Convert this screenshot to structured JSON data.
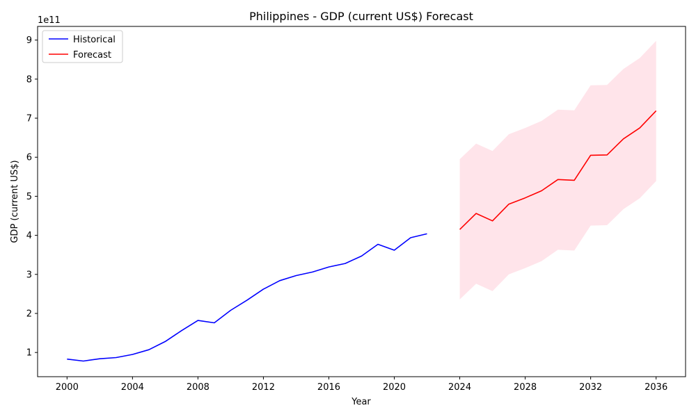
{
  "chart_data": {
    "type": "line",
    "title": "Philippines - GDP (current US$) Forecast",
    "xlabel": "Year",
    "ylabel": "GDP (current US$)",
    "y_multiplier_label": "1e11",
    "xlim": [
      1998.2,
      2037.8
    ],
    "ylim": [
      0.38,
      9.35
    ],
    "x_ticks": [
      2000,
      2004,
      2008,
      2012,
      2016,
      2020,
      2024,
      2028,
      2032,
      2036
    ],
    "y_ticks": [
      1,
      2,
      3,
      4,
      5,
      6,
      7,
      8,
      9
    ],
    "grid": false,
    "legend_position": "top-left",
    "series": [
      {
        "name": "Historical",
        "color": "#0000ff",
        "x": [
          2000,
          2001,
          2002,
          2003,
          2004,
          2005,
          2006,
          2007,
          2008,
          2009,
          2010,
          2011,
          2012,
          2013,
          2014,
          2015,
          2016,
          2017,
          2018,
          2019,
          2020,
          2021,
          2022
        ],
        "y": [
          0.83,
          0.78,
          0.84,
          0.87,
          0.95,
          1.07,
          1.28,
          1.56,
          1.82,
          1.76,
          2.08,
          2.34,
          2.62,
          2.84,
          2.97,
          3.06,
          3.19,
          3.28,
          3.47,
          3.77,
          3.62,
          3.94,
          4.04
        ]
      },
      {
        "name": "Forecast",
        "color": "#ff0000",
        "x": [
          2024,
          2025,
          2026,
          2027,
          2028,
          2029,
          2030,
          2031,
          2032,
          2033,
          2034,
          2035,
          2036
        ],
        "y": [
          4.15,
          4.56,
          4.37,
          4.8,
          4.96,
          5.14,
          5.43,
          5.41,
          6.05,
          6.06,
          6.47,
          6.75,
          7.19
        ]
      }
    ],
    "confidence_band": {
      "color": "#ffe4ea",
      "x": [
        2024,
        2025,
        2026,
        2027,
        2028,
        2029,
        2030,
        2031,
        2032,
        2033,
        2034,
        2035,
        2036
      ],
      "lower": [
        2.36,
        2.76,
        2.57,
        3.0,
        3.16,
        3.34,
        3.63,
        3.61,
        4.25,
        4.26,
        4.67,
        4.95,
        5.39
      ],
      "upper": [
        5.95,
        6.35,
        6.16,
        6.59,
        6.75,
        6.93,
        7.22,
        7.2,
        7.84,
        7.85,
        8.26,
        8.54,
        8.98
      ]
    }
  }
}
